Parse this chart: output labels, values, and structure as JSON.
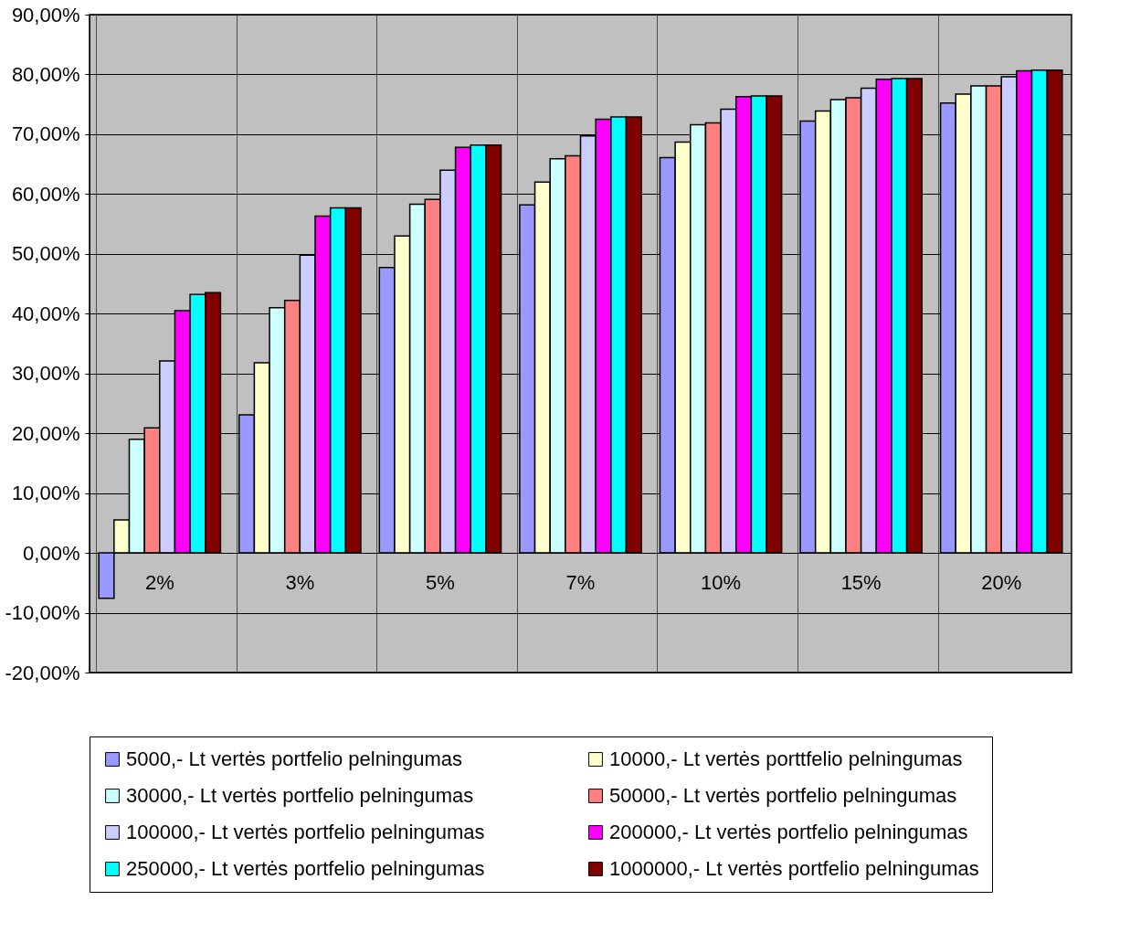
{
  "chart_data": {
    "type": "bar",
    "categories": [
      "2%",
      "3%",
      "5%",
      "7%",
      "10%",
      "15%",
      "20%"
    ],
    "series": [
      {
        "name": "5000,- Lt vertės portfelio pelningumas",
        "color": "#9999ff",
        "values": [
          -7.6,
          23.1,
          47.7,
          58.2,
          66.1,
          72.2,
          75.2
        ]
      },
      {
        "name": "10000,- Lt vertės porttfelio pelningumas",
        "color": "#ffffcc",
        "values": [
          5.5,
          31.8,
          53.0,
          62.0,
          68.7,
          73.9,
          76.7
        ]
      },
      {
        "name": "30000,- Lt vertės portfelio pelningumas",
        "color": "#ccffff",
        "values": [
          19.0,
          41.0,
          58.3,
          65.9,
          71.6,
          75.8,
          78.1
        ]
      },
      {
        "name": "50000,- Lt vertės portfelio pelningumas",
        "color": "#ff8080",
        "values": [
          20.9,
          42.2,
          59.1,
          66.4,
          71.9,
          76.1,
          78.1
        ]
      },
      {
        "name": "100000,- Lt vertės portfelio pelningumas",
        "color": "#ccccff",
        "values": [
          32.1,
          49.8,
          64.0,
          69.7,
          74.2,
          77.7,
          79.6
        ]
      },
      {
        "name": "200000,- Lt vertės portfelio pelningumas",
        "color": "#ff00ff",
        "values": [
          40.5,
          56.3,
          67.8,
          72.5,
          76.3,
          79.2,
          80.6
        ]
      },
      {
        "name": "250000,- Lt vertės portfelio pelningumas",
        "color": "#00ffff",
        "values": [
          43.2,
          57.7,
          68.2,
          72.9,
          76.4,
          79.3,
          80.7
        ]
      },
      {
        "name": "1000000,- Lt vertės portfelio pelningumas",
        "color": "#800000",
        "values": [
          43.5,
          57.7,
          68.2,
          72.9,
          76.4,
          79.3,
          80.7
        ]
      }
    ],
    "ylim": [
      -20,
      90
    ],
    "yticks": [
      {
        "value": -20,
        "label": "-20,00%"
      },
      {
        "value": -10,
        "label": "-10,00%"
      },
      {
        "value": 0,
        "label": "0,00%"
      },
      {
        "value": 10,
        "label": "10,00%"
      },
      {
        "value": 20,
        "label": "20,00%"
      },
      {
        "value": 30,
        "label": "30,00%"
      },
      {
        "value": 40,
        "label": "40,00%"
      },
      {
        "value": 50,
        "label": "50,00%"
      },
      {
        "value": 60,
        "label": "60,00%"
      },
      {
        "value": 70,
        "label": "70,00%"
      },
      {
        "value": 80,
        "label": "80,00%"
      },
      {
        "value": 90,
        "label": "90,00%"
      }
    ],
    "grid": true,
    "legend": "bottom"
  }
}
